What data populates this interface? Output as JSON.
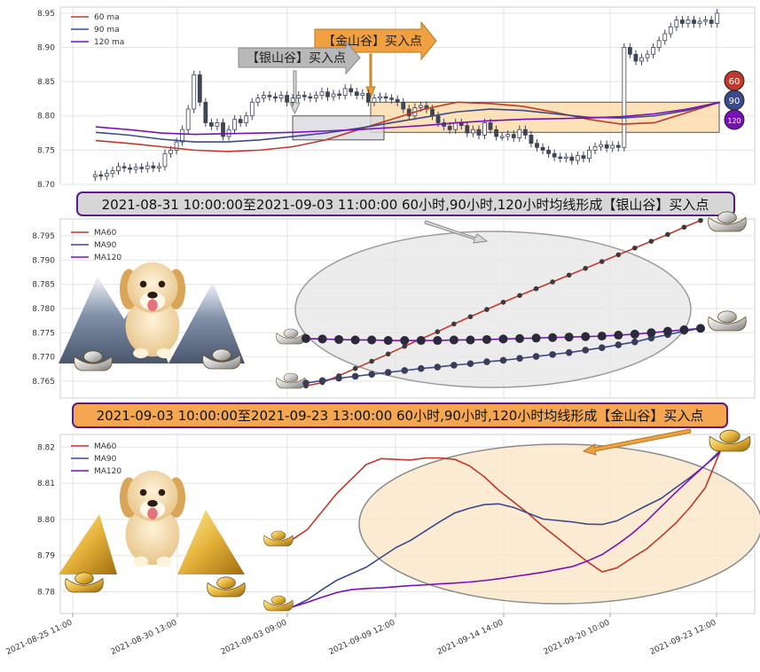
{
  "chart_data": [
    {
      "type": "candlestick+line",
      "panel": "top",
      "ylim": [
        8.7,
        8.955
      ],
      "yticks": [
        "8.70",
        "8.75",
        "8.80",
        "8.85",
        "8.90",
        "8.95"
      ],
      "legend": [
        "60 ma",
        "90 ma",
        "120 ma"
      ],
      "series_colors": {
        "ma60": "#c0392b",
        "ma90": "#3b4a8a",
        "ma120": "#7b10b8",
        "candle": "#3d4556"
      },
      "ma_badges": [
        "60",
        "90",
        "120"
      ],
      "annotations": [
        {
          "text": "【金山谷】买入点",
          "color": "#f0a040"
        },
        {
          "text": "【银山谷】买入点",
          "color": "#b8b8b8"
        }
      ],
      "candles_close": [
        8.714,
        8.712,
        8.716,
        8.72,
        8.726,
        8.724,
        8.722,
        8.725,
        8.723,
        8.727,
        8.724,
        8.726,
        8.745,
        8.75,
        8.762,
        8.78,
        8.81,
        8.86,
        8.82,
        8.79,
        8.785,
        8.79,
        8.77,
        8.78,
        8.795,
        8.79,
        8.8,
        8.82,
        8.826,
        8.83,
        8.828,
        8.826,
        8.83,
        8.82,
        8.826,
        8.83,
        8.828,
        8.826,
        8.83,
        8.835,
        8.828,
        8.832,
        8.83,
        8.84,
        8.835,
        8.83,
        8.833,
        8.82,
        8.826,
        8.828,
        8.826,
        8.824,
        8.82,
        8.81,
        8.8,
        8.812,
        8.815,
        8.81,
        8.8,
        8.79,
        8.785,
        8.78,
        8.79,
        8.786,
        8.775,
        8.78,
        8.772,
        8.79,
        8.78,
        8.77,
        8.77,
        8.773,
        8.768,
        8.78,
        8.772,
        8.76,
        8.754,
        8.75,
        8.745,
        8.74,
        8.738,
        8.74,
        8.735,
        8.742,
        8.738,
        8.75,
        8.755,
        8.758,
        8.753,
        8.757,
        8.754,
        8.9,
        8.89,
        8.88,
        8.885,
        8.89,
        8.9,
        8.91,
        8.92,
        8.93,
        8.94,
        8.935,
        8.94,
        8.935,
        8.938,
        8.94,
        8.935,
        8.95
      ]
    },
    {
      "type": "line",
      "panel": "middle",
      "title": "2021-08-31 10:00:00至2021-09-03 11:00:00 60小时,90小时,120小时均线形成【银山谷】买入点",
      "ylim": [
        8.7615,
        8.7985
      ],
      "yticks": [
        "8.765",
        "8.770",
        "8.775",
        "8.780",
        "8.785",
        "8.790",
        "8.795"
      ],
      "legend": [
        "MA60",
        "MA90",
        "MA120"
      ],
      "series": [
        {
          "name": "MA60",
          "values": [
            8.764,
            8.7647,
            8.7661,
            8.7676,
            8.7691,
            8.7706,
            8.7722,
            8.7737,
            8.7752,
            8.7768,
            8.7783,
            8.7798,
            8.7813,
            8.7827,
            8.7841,
            8.7855,
            8.7869,
            8.7883,
            8.7897,
            8.7911,
            8.7925,
            8.7939,
            8.7953,
            8.7968,
            8.7982
          ]
        },
        {
          "name": "MA90",
          "values": [
            8.7646,
            8.7651,
            8.7656,
            8.766,
            8.7664,
            8.7668,
            8.7672,
            8.7676,
            8.7679,
            8.7683,
            8.7686,
            8.769,
            8.7693,
            8.7697,
            8.7701,
            8.7705,
            8.7709,
            8.7714,
            8.7719,
            8.7725,
            8.7731,
            8.7739,
            8.7746,
            8.7753,
            8.7759
          ]
        },
        {
          "name": "MA120",
          "values": [
            8.7738,
            8.7737,
            8.7736,
            8.7735,
            8.7735,
            8.7734,
            8.7734,
            8.7734,
            8.7734,
            8.7735,
            8.7735,
            8.7736,
            8.7737,
            8.7738,
            8.7739,
            8.774,
            8.7741,
            8.7742,
            8.7743,
            8.7745,
            8.7747,
            8.775,
            8.7753,
            8.7756,
            8.7759
          ]
        }
      ]
    },
    {
      "type": "line",
      "panel": "bottom",
      "title": "2021-09-03 10:00:00至2021-09-23 13:00:00 60小时,90小时,120小时均线形成【金山谷】买入点",
      "ylim": [
        8.774,
        8.8235
      ],
      "yticks": [
        "8.78",
        "8.79",
        "8.80",
        "8.81",
        "8.82"
      ],
      "legend": [
        "MA60",
        "MA90",
        "MA120"
      ],
      "x_ticks": [
        "2021-08-25 11:00",
        "2021-08-30 13:00",
        "2021-09-03 09:00",
        "2021-09-09 12:00",
        "2021-09-14 14:00",
        "2021-09-20 10:00",
        "2021-09-23 12:00"
      ],
      "series": [
        {
          "name": "MA60",
          "values": [
            8.7945,
            8.7972,
            8.8022,
            8.8072,
            8.8112,
            8.8152,
            8.8168,
            8.8166,
            8.8164,
            8.817,
            8.817,
            8.8166,
            8.8148,
            8.8118,
            8.808,
            8.8048,
            8.8016,
            8.798,
            8.7948,
            8.7915,
            8.7883,
            8.7855,
            8.7866,
            8.7893,
            8.7918,
            8.7953,
            8.799,
            8.8035,
            8.8088,
            8.8188
          ]
        },
        {
          "name": "MA90",
          "values": [
            8.7758,
            8.7778,
            8.7806,
            8.7832,
            8.785,
            8.7868,
            8.7895,
            8.7922,
            8.7942,
            8.7968,
            8.7994,
            8.8018,
            8.8031,
            8.8041,
            8.8043,
            8.8033,
            8.8017,
            8.8001,
            8.7997,
            8.7993,
            8.7987,
            8.7986,
            8.7996,
            8.8017,
            8.8038,
            8.8058,
            8.8088,
            8.8117,
            8.815,
            8.819
          ]
        },
        {
          "name": "MA120",
          "values": [
            8.7758,
            8.7771,
            8.7785,
            8.7798,
            8.7806,
            8.7809,
            8.7811,
            8.7814,
            8.7817,
            8.7819,
            8.7822,
            8.7824,
            8.7827,
            8.7831,
            8.7836,
            8.7842,
            8.7848,
            8.7854,
            8.7862,
            8.787,
            8.7885,
            8.7903,
            8.793,
            8.796,
            8.7995,
            8.8035,
            8.8075,
            8.8113,
            8.815,
            8.8185
          ]
        }
      ]
    }
  ]
}
